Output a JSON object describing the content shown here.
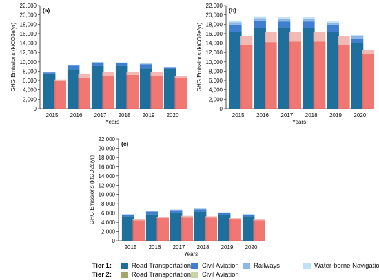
{
  "chart_data": [
    {
      "type": "bar",
      "panel_label": "(a)",
      "ylabel": "GHG Emissions (ktCO2e/yr)",
      "xlabel": "Years",
      "categories": [
        "2015",
        "2016",
        "2017",
        "2018",
        "2019",
        "2020"
      ],
      "ylim": [
        0,
        22000
      ],
      "yticks": [
        0,
        2000,
        4000,
        6000,
        8000,
        10000,
        12000,
        14000,
        16000,
        18000,
        20000,
        22000
      ],
      "tier1": {
        "road": [
          7500,
          8300,
          9100,
          9100,
          8600,
          8400
        ],
        "aviation": [
          200,
          900,
          700,
          600,
          900,
          300
        ],
        "railways": [
          100,
          100,
          100,
          100,
          100,
          100
        ],
        "waterborne": [
          100,
          100,
          100,
          100,
          100,
          100
        ]
      },
      "tier2": {
        "road": [
          5900,
          6500,
          7000,
          7200,
          6900,
          6600
        ],
        "aviation": [
          300,
          1000,
          800,
          700,
          900,
          300
        ]
      }
    },
    {
      "type": "bar",
      "panel_label": "(b)",
      "ylabel": "GHG Emissions (ktCO2e/yr)",
      "xlabel": "Years",
      "categories": [
        "2015",
        "2016",
        "2017",
        "2018",
        "2019",
        "2020"
      ],
      "ylim": [
        0,
        22000
      ],
      "yticks": [
        0,
        2000,
        4000,
        6000,
        8000,
        10000,
        12000,
        14000,
        16000,
        18000,
        20000,
        22000
      ],
      "tier1": {
        "road": [
          16300,
          17300,
          17400,
          17300,
          16300,
          14000
        ],
        "aviation": [
          1600,
          1500,
          1200,
          1300,
          1600,
          1000
        ],
        "railways": [
          500,
          500,
          500,
          500,
          400,
          400
        ],
        "waterborne": [
          400,
          400,
          400,
          400,
          300,
          300
        ]
      },
      "tier2": {
        "road": [
          13500,
          14200,
          14300,
          14300,
          13500,
          11700
        ],
        "aviation": [
          2000,
          2100,
          2000,
          2000,
          2000,
          900
        ]
      }
    },
    {
      "type": "bar",
      "panel_label": "(c)",
      "ylabel": "GHG Emissions (ktCO2e/yr)",
      "xlabel": "Years",
      "categories": [
        "2015",
        "2016",
        "2017",
        "2018",
        "2019",
        "2020"
      ],
      "ylim": [
        0,
        22000
      ],
      "yticks": [
        0,
        2000,
        4000,
        6000,
        8000,
        10000,
        12000,
        14000,
        16000,
        18000,
        20000,
        22000
      ],
      "tier1": {
        "road": [
          5300,
          5700,
          6100,
          6300,
          5600,
          5300
        ],
        "aviation": [
          300,
          600,
          500,
          500,
          400,
          300
        ],
        "railways": [
          100,
          100,
          100,
          100,
          100,
          100
        ],
        "waterborne": [
          100,
          100,
          100,
          100,
          100,
          100
        ]
      },
      "tier2": {
        "road": [
          4400,
          4900,
          5000,
          5000,
          4600,
          4400
        ],
        "aviation": [
          300,
          300,
          400,
          300,
          300,
          200
        ]
      }
    }
  ],
  "legend": {
    "tier1_label": "Tier 1:",
    "tier2_label": "Tier 2:",
    "tier1_items": [
      "Road Transportation",
      "Civil Aviation",
      "Railways",
      "Water-borne Navigation"
    ],
    "tier2_items": [
      "Road Transportation",
      "Civil Aviation"
    ]
  },
  "colors": {
    "tier1_road": "#1f6f9c",
    "tier1_aviation": "#3f7fd0",
    "tier1_railways": "#8fb7e3",
    "tier1_waterborne": "#bfe3f5",
    "tier2_road": "#ef6b66",
    "tier2_aviation": "#f2b3ae",
    "legend_tier2_road": "#a3a56a",
    "legend_tier2_aviation": "#c9d3a8"
  }
}
